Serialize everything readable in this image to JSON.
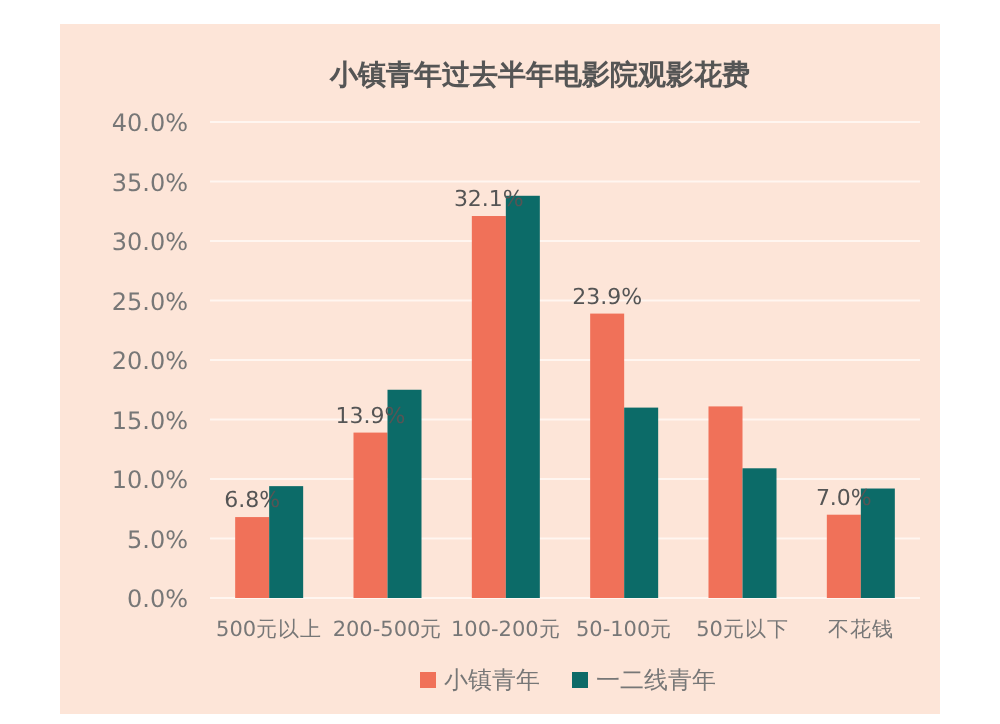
{
  "chart_data": {
    "type": "bar",
    "title": "小镇青年过去半年电影院观影花费",
    "categories": [
      "500元以上",
      "200-500元",
      "100-200元",
      "50-100元",
      "50元以下",
      "不花钱"
    ],
    "series": [
      {
        "name": "小镇青年",
        "color": "#f07159",
        "values": [
          6.8,
          13.9,
          32.1,
          23.9,
          16.1,
          7.0
        ],
        "value_labels": [
          "6.8%",
          "13.9%",
          "32.1%",
          "23.9%",
          null,
          "7.0%"
        ]
      },
      {
        "name": "一二线青年",
        "color": "#0c6b68",
        "values": [
          9.4,
          17.5,
          33.8,
          16.0,
          10.9,
          9.2
        ]
      }
    ],
    "ylim": [
      0,
      40
    ],
    "yticks": [
      {
        "value": 0,
        "label": "0.0%"
      },
      {
        "value": 5,
        "label": "5.0%"
      },
      {
        "value": 10,
        "label": "10.0%"
      },
      {
        "value": 15,
        "label": "15.0%"
      },
      {
        "value": 20,
        "label": "20.0%"
      },
      {
        "value": 25,
        "label": "25.0%"
      },
      {
        "value": 30,
        "label": "30.0%"
      },
      {
        "value": 35,
        "label": "35.0%"
      },
      {
        "value": 40,
        "label": "40.0%"
      }
    ],
    "grid": "y",
    "legend": "bottom"
  }
}
